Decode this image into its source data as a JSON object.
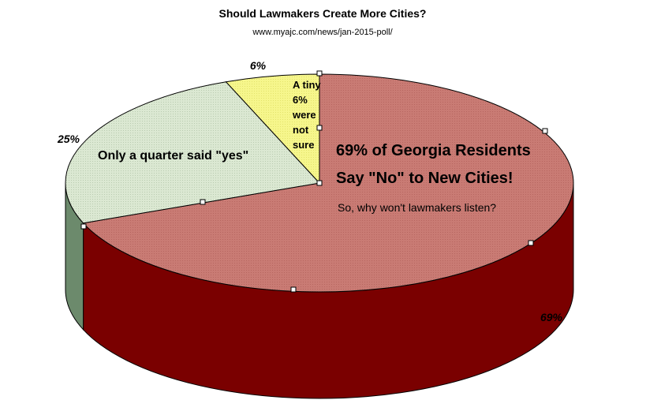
{
  "chart_data": {
    "type": "pie",
    "title": "Should Lawmakers Create More Cities?",
    "subtitle": "www.myajc.com/news/jan-2015-poll/",
    "slices": [
      {
        "label": "No",
        "value": 69,
        "display": "69%",
        "color": "#c97b74",
        "side_color": "#7a0000"
      },
      {
        "label": "Yes",
        "value": 25,
        "display": "25%",
        "color": "#dbe8d2",
        "side_color": "#6c8a6c"
      },
      {
        "label": "Not sure",
        "value": 6,
        "display": "6%",
        "color": "#f6f68c",
        "side_color": "#b5b550"
      }
    ],
    "annotations": {
      "headline_line1": "69% of Georgia Residents",
      "headline_line2": "Say \"No\" to New Cities!",
      "question": "So, why won't lawmakers listen?",
      "yes_note": "Only a quarter said \"yes\"",
      "unsure_lines": [
        "A tiny",
        "6%",
        "were",
        "not",
        "sure"
      ]
    }
  }
}
